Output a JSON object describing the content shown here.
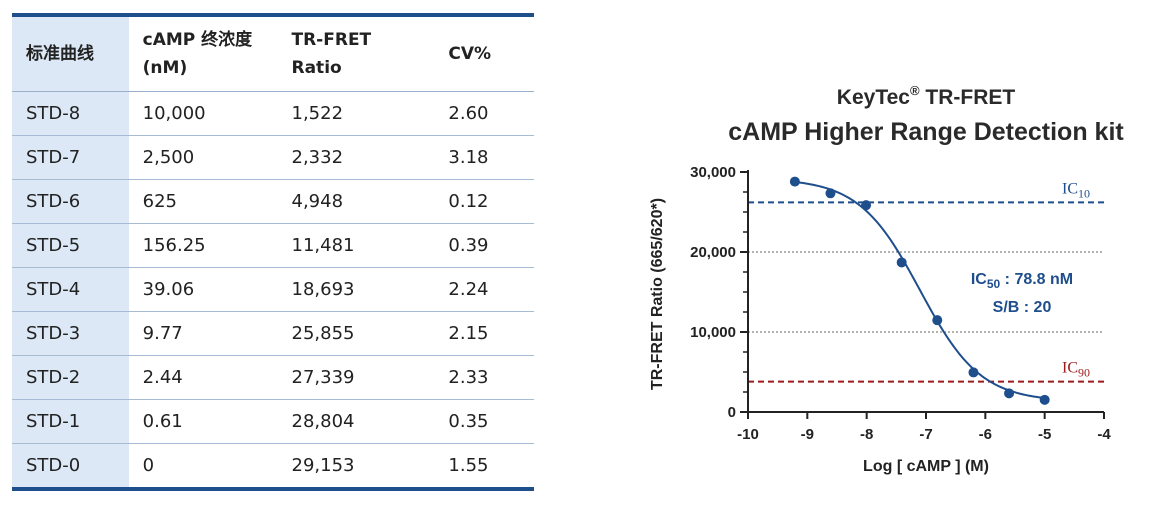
{
  "table": {
    "headers": [
      "标准曲线",
      [
        "cAMP 终浓度",
        "(nM)"
      ],
      [
        "TR-FRET",
        "Ratio"
      ],
      "CV%"
    ],
    "rows": [
      [
        "STD-8",
        "10,000",
        "1,522",
        "2.60"
      ],
      [
        "STD-7",
        "2,500",
        "2,332",
        "3.18"
      ],
      [
        "STD-6",
        "625",
        "4,948",
        "0.12"
      ],
      [
        "STD-5",
        "156.25",
        "11,481",
        "0.39"
      ],
      [
        "STD-4",
        "39.06",
        "18,693",
        "2.24"
      ],
      [
        "STD-3",
        "9.77",
        "25,855",
        "2.15"
      ],
      [
        "STD-2",
        "2.44",
        "27,339",
        "2.33"
      ],
      [
        "STD-1",
        "0.61",
        "28,804",
        "0.35"
      ],
      [
        "STD-0",
        "0",
        "29,153",
        "1.55"
      ]
    ]
  },
  "chart_data": {
    "type": "scatter",
    "title_line1": "KeyTec",
    "title_registered": "®",
    "title_line1_suffix": " TR-FRET",
    "title_line2": "cAMP Higher Range Detection kit",
    "xlabel": "Log [ cAMP ] (M)",
    "ylabel": "TR-FRET Ratio (665/620*)",
    "xlim": [
      -10,
      -4
    ],
    "ylim": [
      0,
      30000
    ],
    "x_ticks": [
      -10,
      -9,
      -8,
      -7,
      -6,
      -5,
      -4
    ],
    "x_tick_labels": [
      "-10",
      "-9",
      "-8",
      "-7",
      "-6",
      "-5",
      "-4"
    ],
    "y_ticks": [
      0,
      10000,
      20000,
      30000
    ],
    "y_tick_labels": [
      "0",
      "10,000",
      "20,000",
      "30,000"
    ],
    "y_gridlines": [
      10000,
      20000
    ],
    "series": [
      {
        "x": [
          -9.21,
          -8.61,
          -8.01,
          -7.41,
          -6.81,
          -6.2,
          -5.6,
          -5.0
        ],
        "y": [
          28804,
          27339,
          25855,
          18693,
          11481,
          4948,
          2332,
          1522
        ],
        "color": "#1f4e8c"
      }
    ],
    "fit": {
      "top": 29200,
      "bottom": 1300,
      "log_ic50": -7.103,
      "hill": 0.85,
      "x_range": [
        -9.21,
        -5.0
      ]
    },
    "reference_lines": [
      {
        "label": "IC",
        "subscript": "10",
        "y": 26200,
        "color": "#1f4e8c"
      },
      {
        "label": "IC",
        "subscript": "90",
        "y": 3800,
        "color": "#9b1b1b"
      }
    ],
    "annotation": {
      "ic50_prefix": "IC",
      "ic50_sub": "50",
      "ic50_value": " : 78.8 nM",
      "sb": "S/B : 20"
    }
  }
}
